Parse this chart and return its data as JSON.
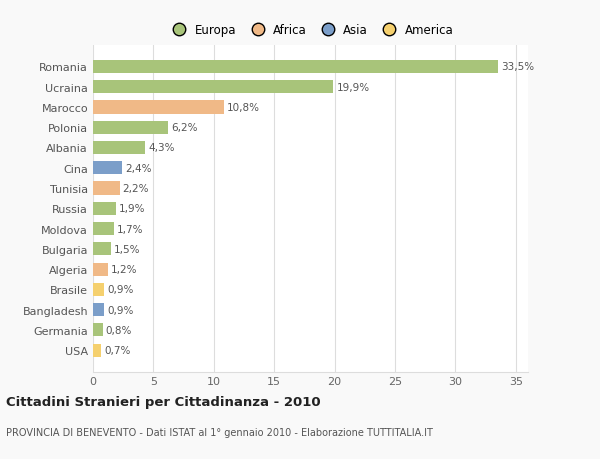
{
  "countries": [
    "Romania",
    "Ucraina",
    "Marocco",
    "Polonia",
    "Albania",
    "Cina",
    "Tunisia",
    "Russia",
    "Moldova",
    "Bulgaria",
    "Algeria",
    "Brasile",
    "Bangladesh",
    "Germania",
    "USA"
  ],
  "values": [
    33.5,
    19.9,
    10.8,
    6.2,
    4.3,
    2.4,
    2.2,
    1.9,
    1.7,
    1.5,
    1.2,
    0.9,
    0.9,
    0.8,
    0.7
  ],
  "labels": [
    "33,5%",
    "19,9%",
    "10,8%",
    "6,2%",
    "4,3%",
    "2,4%",
    "2,2%",
    "1,9%",
    "1,7%",
    "1,5%",
    "1,2%",
    "0,9%",
    "0,9%",
    "0,8%",
    "0,7%"
  ],
  "colors": [
    "#a8c47a",
    "#a8c47a",
    "#f0b987",
    "#a8c47a",
    "#a8c47a",
    "#7b9ec9",
    "#f0b987",
    "#a8c47a",
    "#a8c47a",
    "#a8c47a",
    "#f0b987",
    "#f5d06e",
    "#7b9ec9",
    "#a8c47a",
    "#f5d06e"
  ],
  "legend_labels": [
    "Europa",
    "Africa",
    "Asia",
    "America"
  ],
  "legend_colors": [
    "#a8c47a",
    "#f0b987",
    "#7b9ec9",
    "#f5d06e"
  ],
  "title": "Cittadini Stranieri per Cittadinanza - 2010",
  "subtitle": "PROVINCIA DI BENEVENTO - Dati ISTAT al 1° gennaio 2010 - Elaborazione TUTTITALIA.IT",
  "xlim": [
    0,
    36
  ],
  "xticks": [
    0,
    5,
    10,
    15,
    20,
    25,
    30,
    35
  ],
  "background_color": "#f9f9f9",
  "bar_background": "#ffffff",
  "grid_color": "#dddddd"
}
